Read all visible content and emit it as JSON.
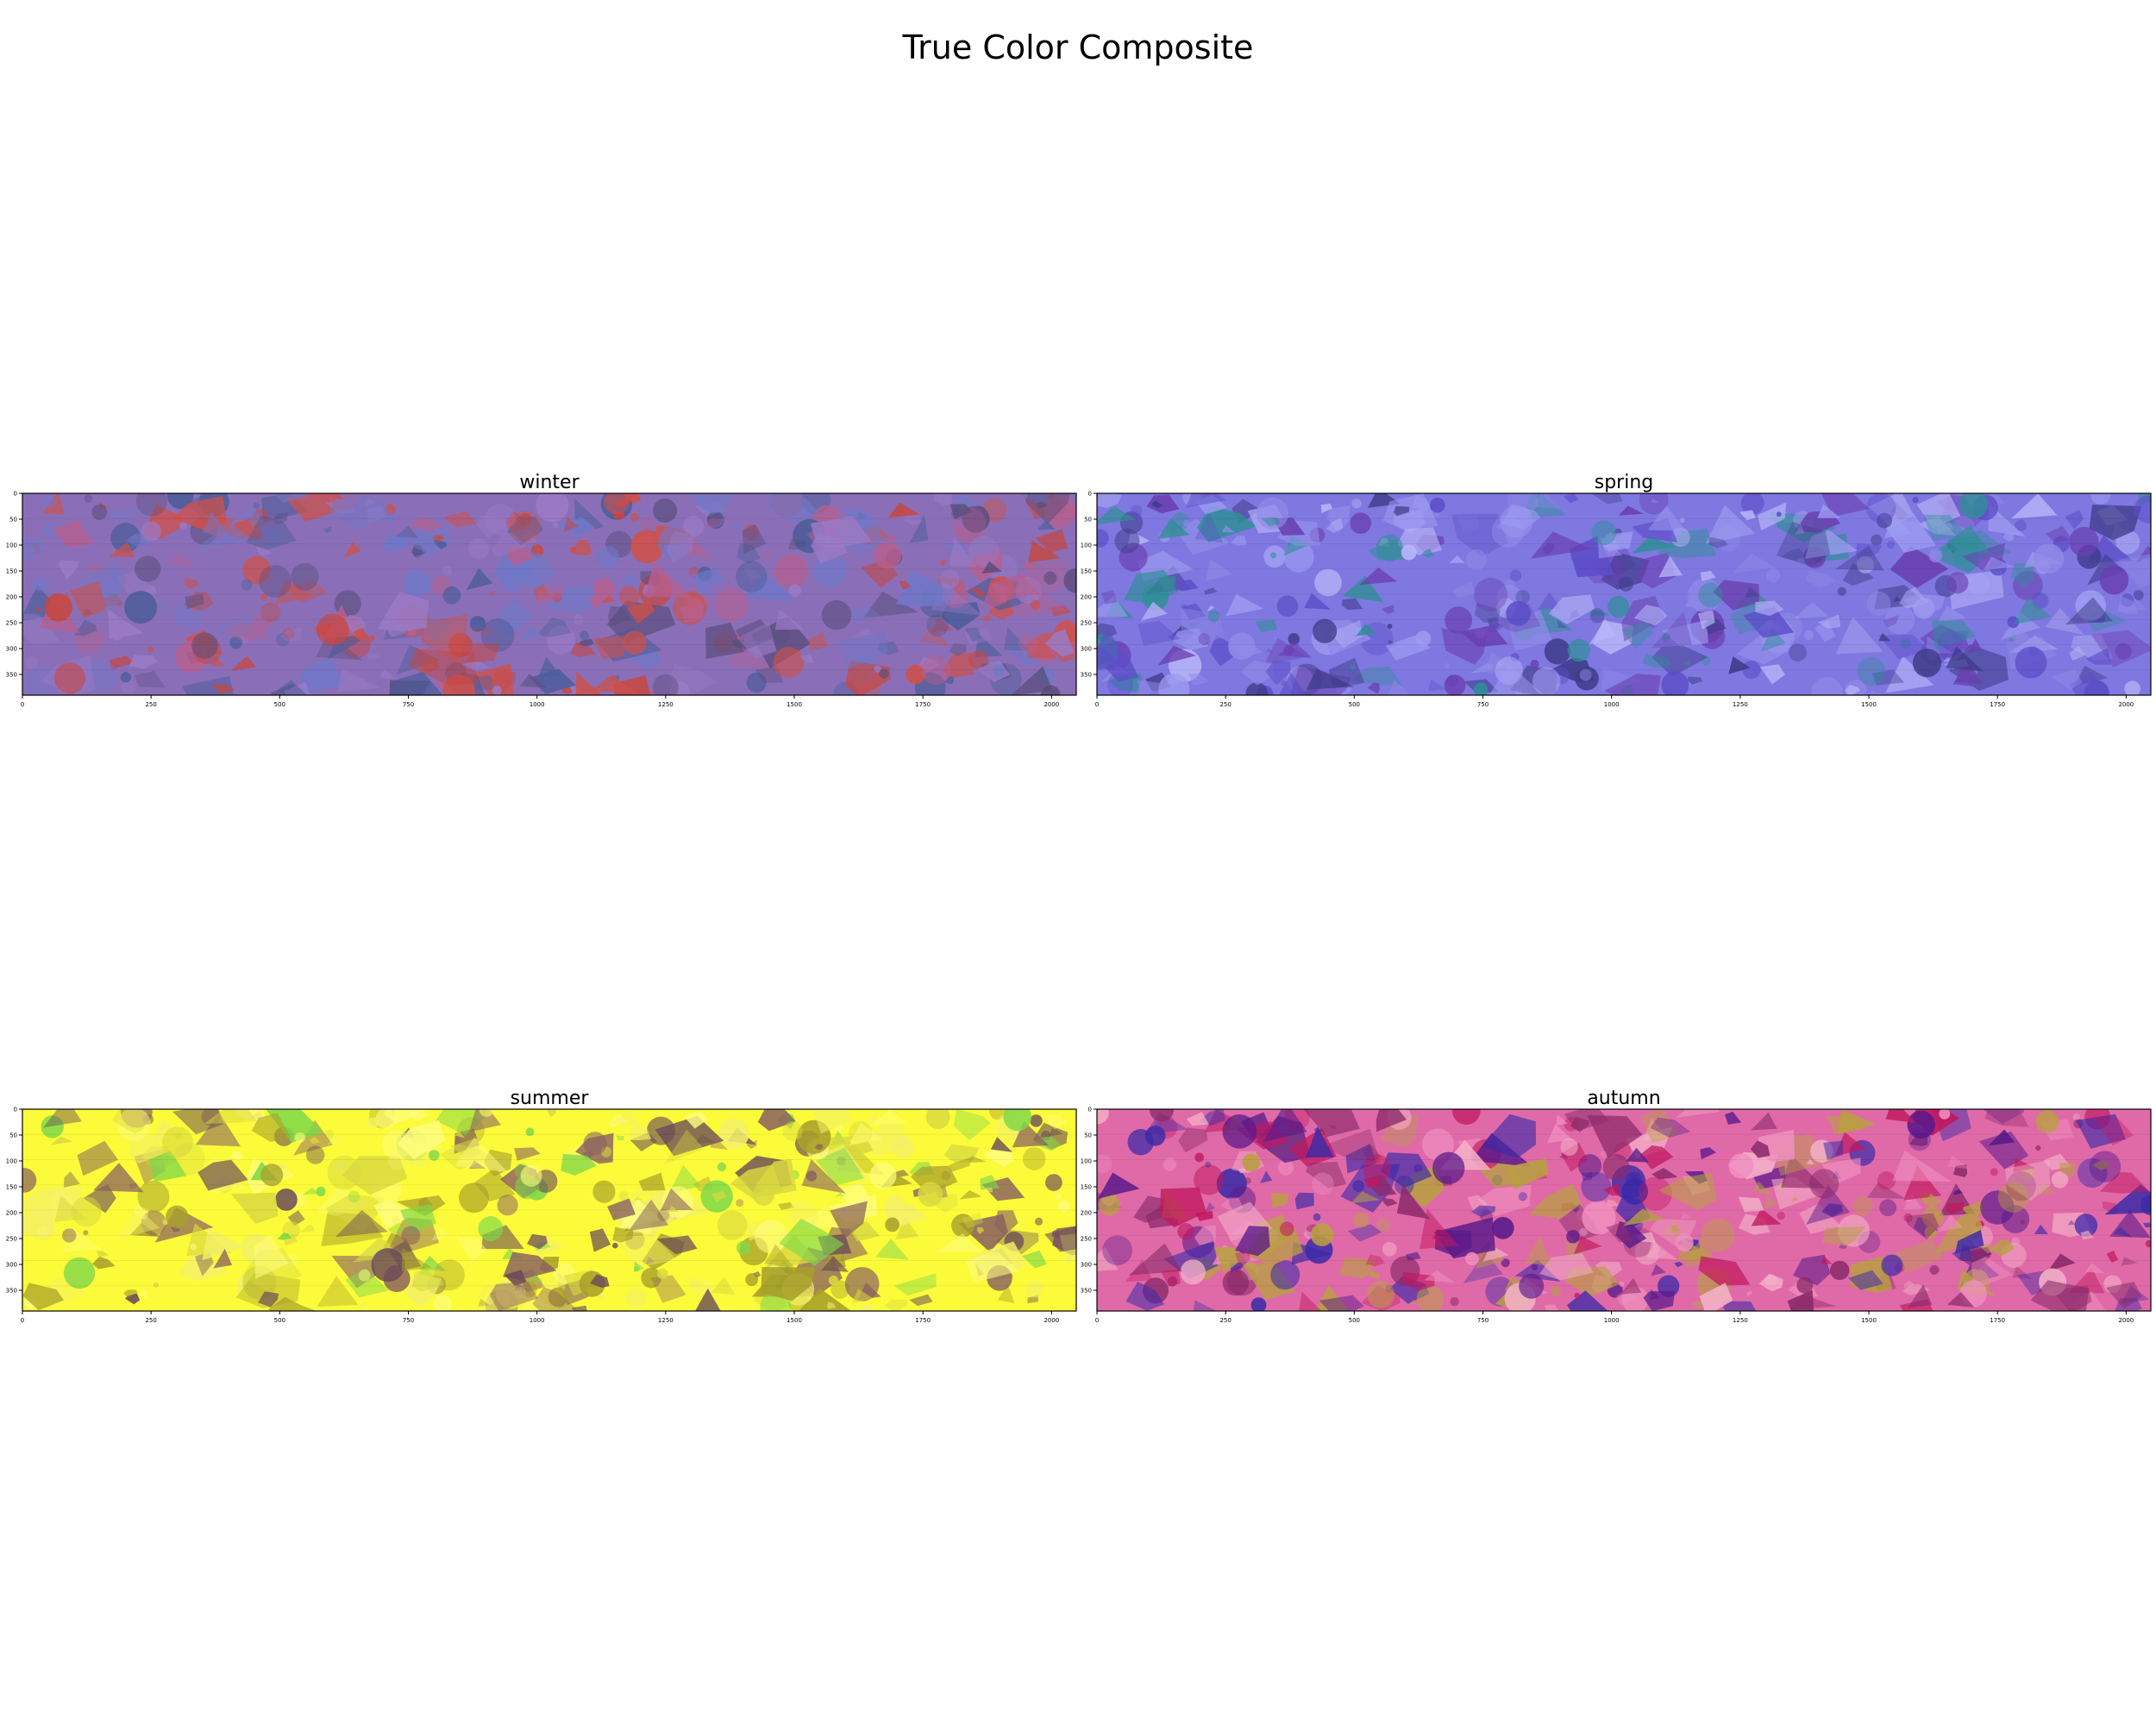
{
  "figure": {
    "title": "True Color Composite"
  },
  "chart_data": [
    {
      "type": "image",
      "title": "winter",
      "xticks": [
        0,
        250,
        500,
        750,
        1000,
        1250,
        1500,
        1750,
        2000
      ],
      "yticks": [
        0,
        50,
        100,
        150,
        200,
        250,
        300,
        350
      ],
      "xlim": [
        0,
        2048
      ],
      "ylim": [
        390,
        0
      ],
      "palette": {
        "base": "#8a6fb8",
        "colors": [
          "#b75f8e",
          "#6f78c8",
          "#c8463e",
          "#5a4e7d",
          "#9a7ac6",
          "#d05048",
          "#4a5c9a"
        ]
      }
    },
    {
      "type": "image",
      "title": "spring",
      "xticks": [
        0,
        250,
        500,
        750,
        1000,
        1250,
        1500,
        1750,
        2000
      ],
      "yticks": [
        0,
        50,
        100,
        150,
        200,
        250,
        300,
        350
      ],
      "xlim": [
        0,
        2048
      ],
      "ylim": [
        390,
        0
      ],
      "palette": {
        "base": "#7f78e0",
        "colors": [
          "#9e9cf2",
          "#5c4ec8",
          "#6a3fb0",
          "#8f8ae8",
          "#3f3c8a",
          "#2f8f96",
          "#b8b6f8"
        ]
      }
    },
    {
      "type": "image",
      "title": "summer",
      "xticks": [
        0,
        250,
        500,
        750,
        1000,
        1250,
        1500,
        1750,
        2000
      ],
      "yticks": [
        0,
        50,
        100,
        150,
        200,
        250,
        300,
        350
      ],
      "xlim": [
        0,
        2048
      ],
      "ylim": [
        390,
        0
      ],
      "palette": {
        "base": "#fbfb3a",
        "colors": [
          "#f4f06a",
          "#d8d840",
          "#8a6060",
          "#6a4a58",
          "#7fd84a",
          "#a8a02a",
          "#fffc80"
        ]
      }
    },
    {
      "type": "image",
      "title": "autumn",
      "xticks": [
        0,
        250,
        500,
        750,
        1000,
        1250,
        1500,
        1750,
        2000
      ],
      "yticks": [
        0,
        50,
        100,
        150,
        200,
        250,
        300,
        350
      ],
      "xlim": [
        0,
        2048
      ],
      "ylim": [
        390,
        0
      ],
      "palette": {
        "base": "#e06aa8",
        "colors": [
          "#f090c0",
          "#c0185e",
          "#3a2aa8",
          "#5a1a8a",
          "#f4b0c8",
          "#b8a040",
          "#8a2a6a"
        ]
      }
    }
  ]
}
